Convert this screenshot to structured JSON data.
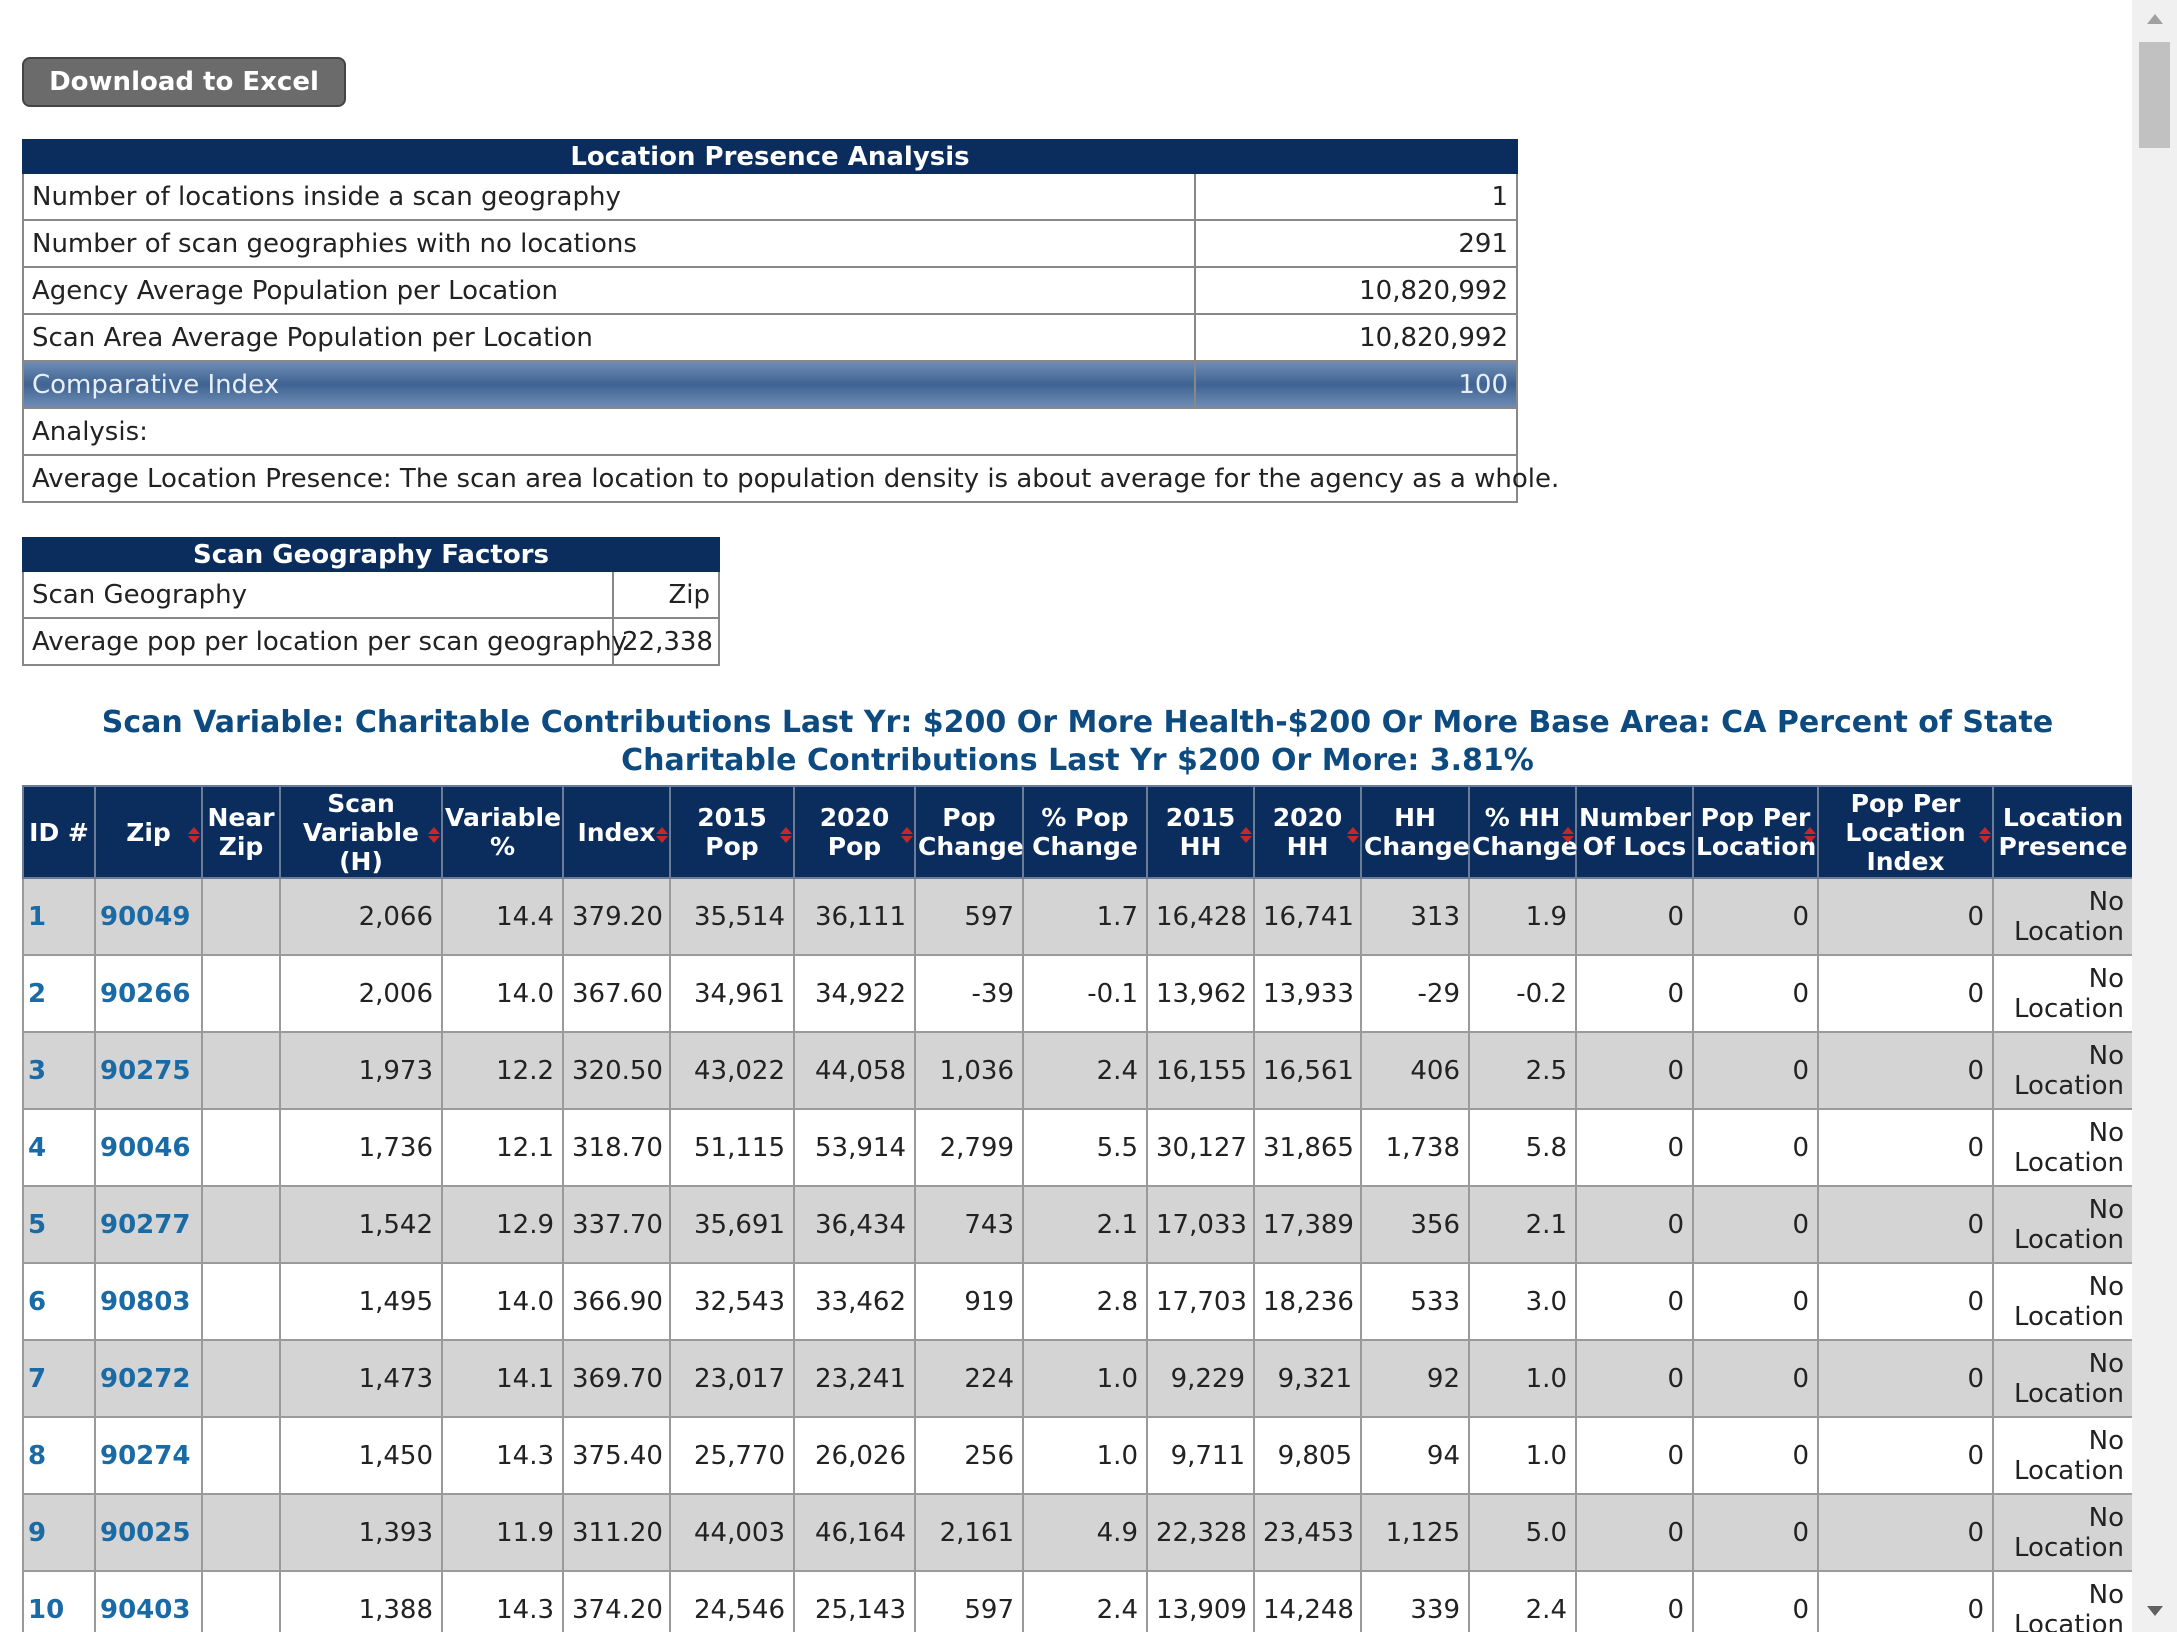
{
  "button": "Download to Excel",
  "presence": {
    "title": "Location Presence Analysis",
    "rows": [
      [
        "Number of locations inside a scan geography",
        "1"
      ],
      [
        "Number of scan geographies with no locations",
        "291"
      ],
      [
        "Agency Average Population per Location",
        "10,820,992"
      ],
      [
        "Scan Area Average Population per Location",
        "10,820,992"
      ],
      [
        "Comparative Index",
        "100"
      ]
    ],
    "analysis_label": "Analysis:",
    "analysis_text": "Average Location Presence: The scan area location to population density is about average for the agency as a whole."
  },
  "geo": {
    "title": "Scan Geography Factors",
    "rows": [
      [
        "Scan Geography",
        "Zip"
      ],
      [
        "Average pop per location per scan geography",
        "22,338"
      ]
    ]
  },
  "scan_title": "Scan Variable: Charitable Contributions Last Yr: $200 Or More Health-$200 Or More Base Area: CA Percent of State Charitable Contributions Last Yr $200 Or More: 3.81%",
  "table": {
    "headers": [
      "ID #",
      "Zip",
      "Near Zip",
      "Scan Variable (H)",
      "Variable %",
      "Index",
      "2015 Pop",
      "2020 Pop",
      "Pop Change",
      "% Pop Change",
      "2015 HH",
      "2020 HH",
      "HH Change",
      "% HH Change",
      "Number Of Locs",
      "Pop Per Location",
      "Pop Per Location Index",
      "Location Presence"
    ],
    "rows": [
      [
        "1",
        "90049",
        null,
        "2,066",
        "14.4",
        "379.20",
        "35,514",
        "36,111",
        "597",
        "1.7",
        "16,428",
        "16,741",
        "313",
        "1.9",
        "0",
        "0",
        "0",
        "No Location"
      ],
      [
        "2",
        "90266",
        null,
        "2,006",
        "14.0",
        "367.60",
        "34,961",
        "34,922",
        "-39",
        "-0.1",
        "13,962",
        "13,933",
        "-29",
        "-0.2",
        "0",
        "0",
        "0",
        "No Location"
      ],
      [
        "3",
        "90275",
        null,
        "1,973",
        "12.2",
        "320.50",
        "43,022",
        "44,058",
        "1,036",
        "2.4",
        "16,155",
        "16,561",
        "406",
        "2.5",
        "0",
        "0",
        "0",
        "No Location"
      ],
      [
        "4",
        "90046",
        null,
        "1,736",
        "12.1",
        "318.70",
        "51,115",
        "53,914",
        "2,799",
        "5.5",
        "30,127",
        "31,865",
        "1,738",
        "5.8",
        "0",
        "0",
        "0",
        "No Location"
      ],
      [
        "5",
        "90277",
        null,
        "1,542",
        "12.9",
        "337.70",
        "35,691",
        "36,434",
        "743",
        "2.1",
        "17,033",
        "17,389",
        "356",
        "2.1",
        "0",
        "0",
        "0",
        "No Location"
      ],
      [
        "6",
        "90803",
        null,
        "1,495",
        "14.0",
        "366.90",
        "32,543",
        "33,462",
        "919",
        "2.8",
        "17,703",
        "18,236",
        "533",
        "3.0",
        "0",
        "0",
        "0",
        "No Location"
      ],
      [
        "7",
        "90272",
        null,
        "1,473",
        "14.1",
        "369.70",
        "23,017",
        "23,241",
        "224",
        "1.0",
        "9,229",
        "9,321",
        "92",
        "1.0",
        "0",
        "0",
        "0",
        "No Location"
      ],
      [
        "8",
        "90274",
        null,
        "1,450",
        "14.3",
        "375.40",
        "25,770",
        "26,026",
        "256",
        "1.0",
        "9,711",
        "9,805",
        "94",
        "1.0",
        "0",
        "0",
        "0",
        "No Location"
      ],
      [
        "9",
        "90025",
        null,
        "1,393",
        "11.9",
        "311.20",
        "44,003",
        "46,164",
        "2,161",
        "4.9",
        "22,328",
        "23,453",
        "1,125",
        "5.0",
        "0",
        "0",
        "0",
        "No Location"
      ],
      [
        "10",
        "90403",
        null,
        "1,388",
        "14.3",
        "374.20",
        "24,546",
        "25,143",
        "597",
        "2.4",
        "13,909",
        "14,248",
        "339",
        "2.4",
        "0",
        "0",
        "0",
        "No Location"
      ]
    ]
  }
}
